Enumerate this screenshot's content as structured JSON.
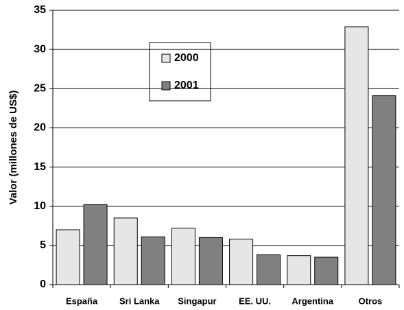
{
  "chart_data": {
    "type": "bar",
    "y_label": "Valor (millones de US$)",
    "categories": [
      "España",
      "Sri Lanka",
      "Singapur",
      "EE. UU.",
      "Argentina",
      "Otros"
    ],
    "series": [
      {
        "name": "2000",
        "color": "#e6e6e6",
        "values": [
          7.0,
          8.5,
          7.2,
          5.8,
          3.7,
          32.9
        ]
      },
      {
        "name": "2001",
        "color": "#808080",
        "values": [
          10.2,
          6.1,
          6.0,
          3.8,
          3.5,
          24.1
        ]
      }
    ],
    "ylim": [
      0,
      35
    ],
    "yticks": [
      0,
      5,
      10,
      15,
      20,
      25,
      30,
      35
    ],
    "grid": true
  }
}
